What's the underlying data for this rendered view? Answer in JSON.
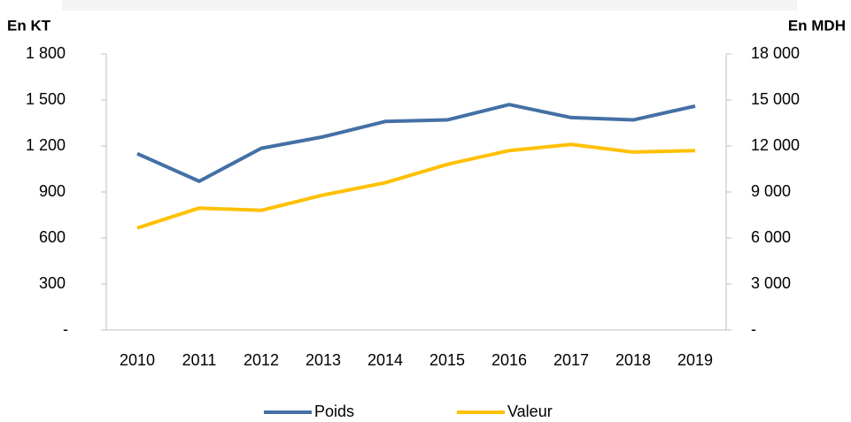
{
  "chart_data": {
    "type": "line",
    "y_label": "En KT",
    "y2_label": "En MDH",
    "categories": [
      "2010",
      "2011",
      "2012",
      "2013",
      "2014",
      "2015",
      "2016",
      "2017",
      "2018",
      "2019"
    ],
    "series": [
      {
        "name": "Poids",
        "color": "#4470a5",
        "values": [
          1150,
          970,
          1185,
          1260,
          1360,
          1370,
          1470,
          1385,
          1370,
          1460
        ]
      },
      {
        "name": "Valeur",
        "color": "#ffc000",
        "axis": "y2",
        "values": [
          6650,
          7950,
          7800,
          8800,
          9600,
          10800,
          11700,
          12100,
          11600,
          11700
        ]
      }
    ],
    "ylim": [
      0,
      1800
    ],
    "yticks": [
      {
        "value": 0,
        "label": "-"
      },
      300,
      600,
      900,
      {
        "value": 1200,
        "label": "1 200"
      },
      {
        "value": 1500,
        "label": "1 500"
      },
      {
        "value": 1800,
        "label": "1 800"
      }
    ],
    "y2lim": [
      0,
      18000
    ],
    "y2ticks": [
      {
        "value": 0,
        "label": "-"
      },
      {
        "value": 3000,
        "label": "3 000"
      },
      {
        "value": 6000,
        "label": "6 000"
      },
      {
        "value": 9000,
        "label": "9 000"
      },
      {
        "value": 12000,
        "label": "12 000"
      },
      {
        "value": 15000,
        "label": "15 000"
      },
      {
        "value": 18000,
        "label": "18 000"
      }
    ],
    "grid": false,
    "legend": "bottom"
  }
}
